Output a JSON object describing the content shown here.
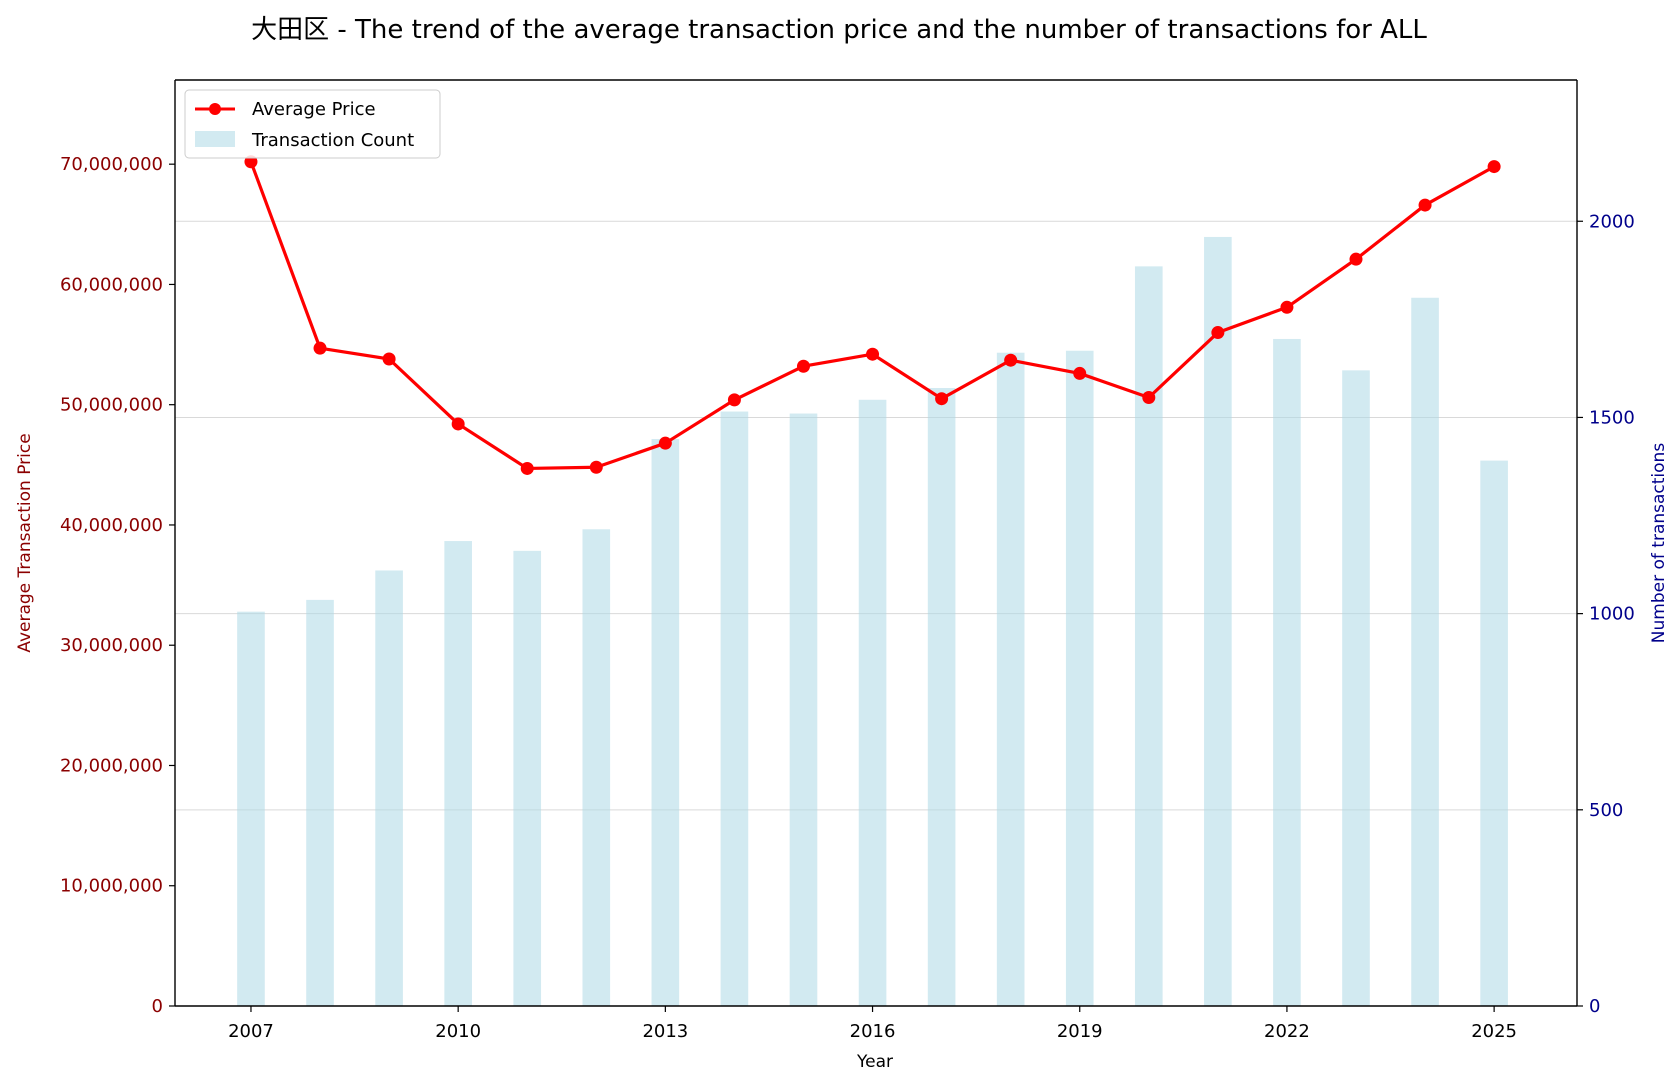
{
  "chart_data": {
    "type": "bar+line",
    "title": "大田区 - The trend of the average transaction price and the number of transactions for ALL",
    "xlabel": "Year",
    "ylabel_left": "Average Transaction Price",
    "ylabel_right": "Number of transactions",
    "x": [
      2007,
      2008,
      2009,
      2010,
      2011,
      2012,
      2013,
      2014,
      2015,
      2016,
      2017,
      2018,
      2019,
      2020,
      2021,
      2022,
      2023,
      2024,
      2025
    ],
    "x_ticks": [
      "2007",
      "2010",
      "2013",
      "2016",
      "2019",
      "2022",
      "2025"
    ],
    "xlim": [
      2005.9,
      2026.2
    ],
    "ylim_left": [
      0,
      77000000
    ],
    "ylim_right": [
      0,
      2360
    ],
    "y_ticks_left": [
      "0",
      "10,000,000",
      "20,000,000",
      "30,000,000",
      "40,000,000",
      "50,000,000",
      "60,000,000",
      "70,000,000"
    ],
    "y_ticks_right": [
      "0",
      "500",
      "1000",
      "1500",
      "2000"
    ],
    "series": [
      {
        "name": "Average Price",
        "type": "line",
        "axis": "left",
        "color": "#ff0000",
        "values": [
          70200000,
          54700000,
          53800000,
          48400000,
          44700000,
          44800000,
          46800000,
          50400000,
          53200000,
          54200000,
          50500000,
          53700000,
          52600000,
          50600000,
          56000000,
          58100000,
          62100000,
          66600000,
          69800000
        ]
      },
      {
        "name": "Transaction Count",
        "type": "bar",
        "axis": "right",
        "color": "#add8e6",
        "values": [
          1005,
          1035,
          1110,
          1185,
          1160,
          1215,
          1445,
          1515,
          1510,
          1545,
          1575,
          1665,
          1670,
          1885,
          1960,
          1700,
          1620,
          1805,
          1390
        ]
      }
    ],
    "grid": true,
    "legend_position": "top-left"
  }
}
